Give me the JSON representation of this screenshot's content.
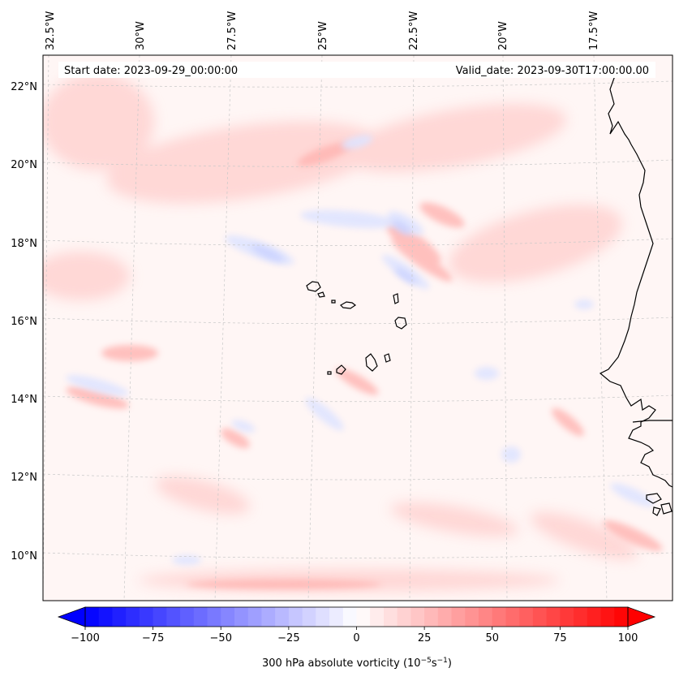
{
  "header": {
    "start_date": "Start date: 2023-09-29_00:00:00",
    "valid_date": "Valid_date: 2023-09-30T17:00:00.00"
  },
  "map": {
    "longitude_labels": [
      "32.5°W",
      "30°W",
      "27.5°W",
      "25°W",
      "22.5°W",
      "20°W",
      "17.5°W"
    ],
    "latitude_labels": [
      "22°N",
      "20°N",
      "18°N",
      "16°N",
      "14°N",
      "12°N",
      "10°N"
    ],
    "gridlines": "dashed"
  },
  "colorbar": {
    "label": "300 hPa absolute vorticity",
    "units_base": "(10",
    "units_exp1": "−5",
    "units_mid": "s",
    "units_exp2": "−1",
    "units_end": ")",
    "tick_labels": [
      "−100",
      "−75",
      "−50",
      "−25",
      "0",
      "25",
      "50",
      "75",
      "100"
    ],
    "range": [
      -100,
      100
    ],
    "color_low": "#0000ff",
    "color_mid": "#ffffff",
    "color_high": "#ff0000",
    "extend": "both"
  }
}
